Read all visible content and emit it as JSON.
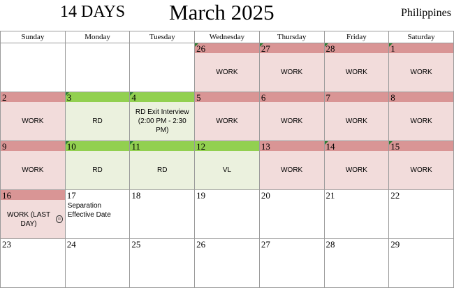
{
  "header": {
    "days_label": "14 DAYS",
    "month_title": "March 2025",
    "location": "Philippines"
  },
  "weekdays": [
    "Sunday",
    "Monday",
    "Tuesday",
    "Wednesday",
    "Thursday",
    "Friday",
    "Saturday"
  ],
  "colors": {
    "work_bar": "#d99595",
    "work_fill": "#f2dcdb",
    "rest_bar": "#92d050",
    "rest_fill": "#ebf1de",
    "marker": "#2e7d32"
  },
  "weeks": [
    [
      {
        "date": "",
        "label": "",
        "kind": "plain",
        "marker": false
      },
      {
        "date": "",
        "label": "",
        "kind": "plain",
        "marker": false
      },
      {
        "date": "",
        "label": "",
        "kind": "plain",
        "marker": false
      },
      {
        "date": "26",
        "label": "WORK",
        "kind": "work",
        "marker": true
      },
      {
        "date": "27",
        "label": "WORK",
        "kind": "work",
        "marker": true
      },
      {
        "date": "28",
        "label": "WORK",
        "kind": "work",
        "marker": true
      },
      {
        "date": "1",
        "label": "WORK",
        "kind": "work",
        "marker": true
      }
    ],
    [
      {
        "date": "2",
        "label": "WORK",
        "kind": "work",
        "marker": false
      },
      {
        "date": "3",
        "label": "RD",
        "kind": "rest",
        "marker": true
      },
      {
        "date": "4",
        "label": "RD Exit Interview (2:00 PM - 2:30 PM)",
        "kind": "rest",
        "marker": true
      },
      {
        "date": "5",
        "label": "WORK",
        "kind": "work",
        "marker": false
      },
      {
        "date": "6",
        "label": "WORK",
        "kind": "work",
        "marker": false
      },
      {
        "date": "7",
        "label": "WORK",
        "kind": "work",
        "marker": false
      },
      {
        "date": "8",
        "label": "WORK",
        "kind": "work",
        "marker": false
      }
    ],
    [
      {
        "date": "9",
        "label": "WORK",
        "kind": "work",
        "marker": false
      },
      {
        "date": "10",
        "label": "RD",
        "kind": "rest",
        "marker": true
      },
      {
        "date": "11",
        "label": "RD",
        "kind": "rest",
        "marker": true
      },
      {
        "date": "12",
        "label": "VL",
        "kind": "rest",
        "marker": false
      },
      {
        "date": "13",
        "label": "WORK",
        "kind": "work",
        "marker": false
      },
      {
        "date": "14",
        "label": "WORK",
        "kind": "work",
        "marker": true
      },
      {
        "date": "15",
        "label": "WORK",
        "kind": "work",
        "marker": true
      }
    ],
    [
      {
        "date": "16",
        "label": "WORK (LAST DAY)",
        "kind": "work",
        "marker": false,
        "icon": "smiley-icon"
      },
      {
        "date": "17",
        "label": "Separation Effective Date",
        "kind": "plain",
        "marker": false
      },
      {
        "date": "18",
        "label": "",
        "kind": "plain",
        "marker": false
      },
      {
        "date": "19",
        "label": "",
        "kind": "plain",
        "marker": false
      },
      {
        "date": "20",
        "label": "",
        "kind": "plain",
        "marker": false
      },
      {
        "date": "21",
        "label": "",
        "kind": "plain",
        "marker": false
      },
      {
        "date": "22",
        "label": "",
        "kind": "plain",
        "marker": false
      }
    ],
    [
      {
        "date": "23",
        "label": "",
        "kind": "plain",
        "marker": false
      },
      {
        "date": "24",
        "label": "",
        "kind": "plain",
        "marker": false
      },
      {
        "date": "25",
        "label": "",
        "kind": "plain",
        "marker": false
      },
      {
        "date": "26",
        "label": "",
        "kind": "plain",
        "marker": false
      },
      {
        "date": "27",
        "label": "",
        "kind": "plain",
        "marker": false
      },
      {
        "date": "28",
        "label": "",
        "kind": "plain",
        "marker": false
      },
      {
        "date": "29",
        "label": "",
        "kind": "plain",
        "marker": false
      }
    ]
  ]
}
